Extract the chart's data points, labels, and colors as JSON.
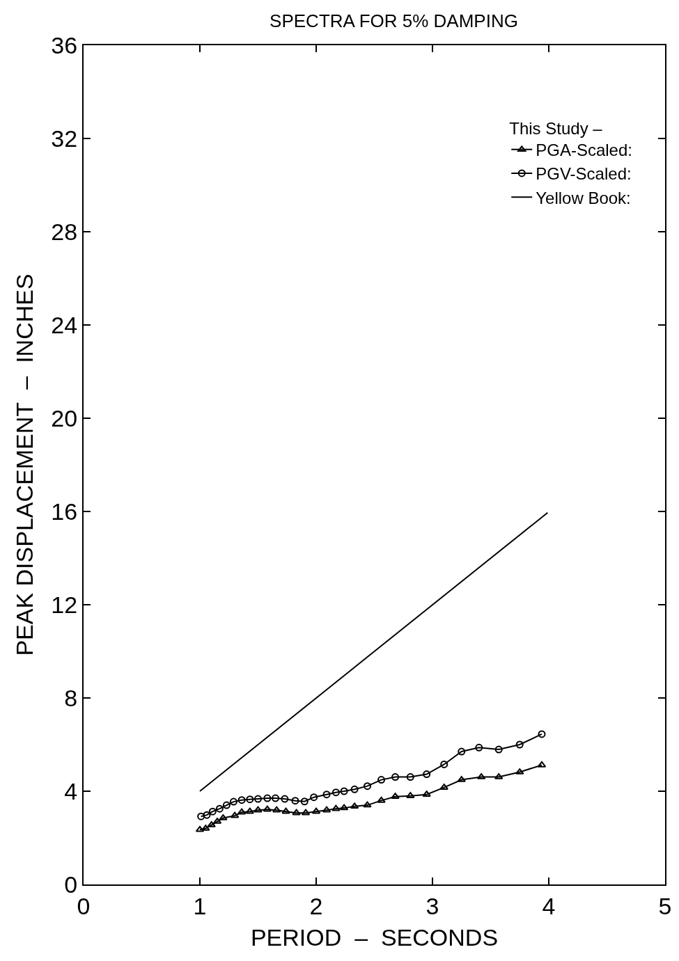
{
  "chart_data": {
    "type": "line",
    "title": "SPECTRA FOR 5% DAMPING",
    "xlabel": "PERIOD  –  SECONDS",
    "ylabel": "PEAK DISPLACEMENT  –  INCHES",
    "legend_title": "This Study –",
    "legend": "top right",
    "xlim": [
      0,
      5
    ],
    "xticks": [
      0,
      1,
      2,
      3,
      4,
      5
    ],
    "ylim": [
      0,
      36
    ],
    "yticks": [
      0,
      4,
      8,
      12,
      16,
      20,
      24,
      28,
      32,
      36
    ],
    "series": [
      {
        "name": "PGA-Scaled:",
        "color": "#000000",
        "marker": "triangle",
        "x": [
          1.0,
          1.05,
          1.1,
          1.15,
          1.2,
          1.3,
          1.36,
          1.43,
          1.5,
          1.58,
          1.66,
          1.74,
          1.83,
          1.91,
          2.0,
          2.09,
          2.17,
          2.24,
          2.33,
          2.44,
          2.56,
          2.68,
          2.81,
          2.95,
          3.1,
          3.25,
          3.42,
          3.57,
          3.75,
          3.94
        ],
        "values": [
          2.35,
          2.4,
          2.55,
          2.7,
          2.85,
          2.95,
          3.1,
          3.13,
          3.19,
          3.22,
          3.19,
          3.13,
          3.07,
          3.07,
          3.13,
          3.19,
          3.25,
          3.28,
          3.35,
          3.4,
          3.6,
          3.77,
          3.8,
          3.86,
          4.16,
          4.49,
          4.61,
          4.61,
          4.82,
          5.12
        ]
      },
      {
        "name": "PGV-Scaled:",
        "color": "#000000",
        "marker": "circle",
        "x": [
          1.01,
          1.06,
          1.11,
          1.17,
          1.23,
          1.29,
          1.36,
          1.43,
          1.5,
          1.58,
          1.65,
          1.73,
          1.82,
          1.9,
          1.98,
          2.09,
          2.17,
          2.24,
          2.33,
          2.44,
          2.56,
          2.68,
          2.81,
          2.95,
          3.1,
          3.25,
          3.4,
          3.57,
          3.75,
          3.94
        ],
        "values": [
          2.92,
          2.98,
          3.13,
          3.25,
          3.4,
          3.55,
          3.62,
          3.65,
          3.67,
          3.7,
          3.7,
          3.67,
          3.59,
          3.56,
          3.74,
          3.86,
          3.95,
          4.0,
          4.08,
          4.22,
          4.49,
          4.61,
          4.61,
          4.73,
          5.15,
          5.7,
          5.87,
          5.79,
          6.0,
          6.45
        ]
      },
      {
        "name": "Yellow Book:",
        "color": "#000000",
        "marker": "none",
        "x": [
          1.0,
          3.99
        ],
        "values": [
          4.0,
          15.95
        ]
      }
    ]
  }
}
